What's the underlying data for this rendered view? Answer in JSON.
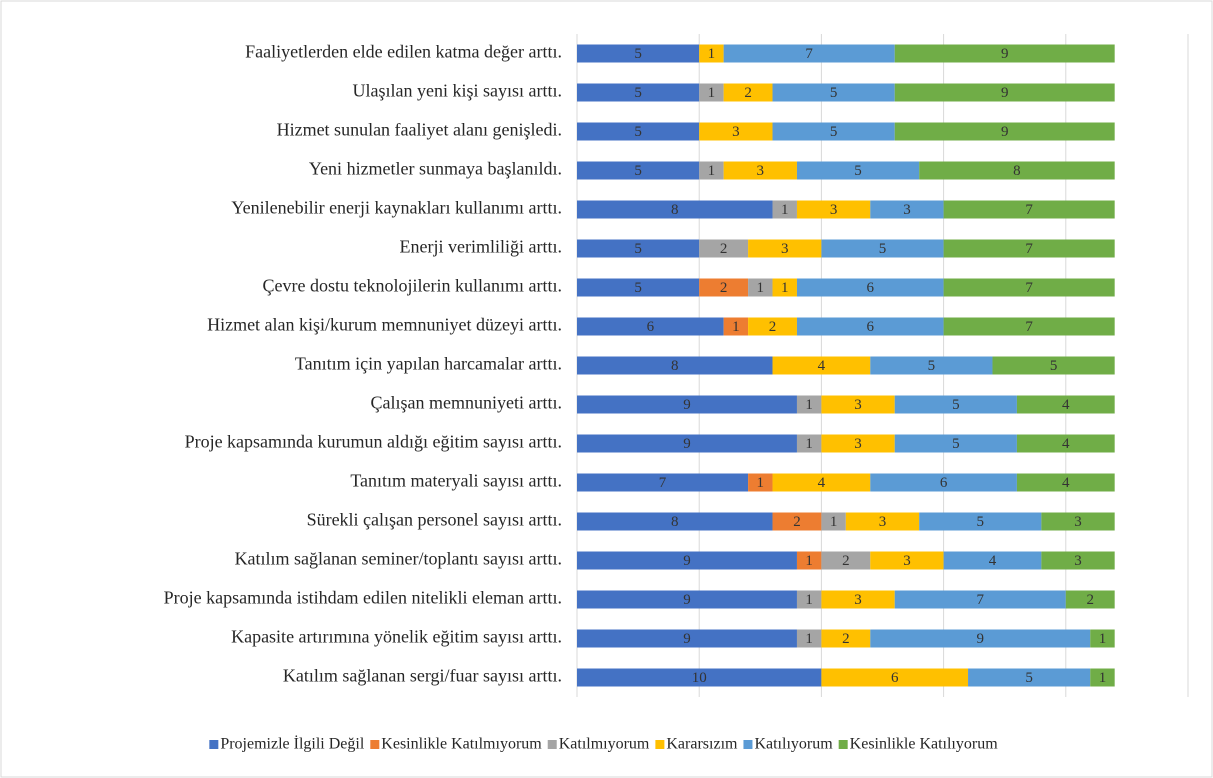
{
  "chart_data": {
    "type": "stacked-barh",
    "categories": [
      "Faaliyetlerden elde edilen katma değer arttı.",
      "Ulaşılan yeni kişi sayısı arttı.",
      "Hizmet sunulan faaliyet alanı genişledi.",
      "Yeni hizmetler sunmaya başlanıldı.",
      "Yenilenebilir enerji kaynakları kullanımı arttı.",
      "Enerji verimliliği arttı.",
      "Çevre dostu teknolojilerin kullanımı arttı.",
      "Hizmet alan kişi/kurum memnuniyet düzeyi arttı.",
      "Tanıtım için yapılan harcamalar arttı.",
      "Çalışan memnuniyeti arttı.",
      "Proje kapsamında kurumun aldığı eğitim sayısı arttı.",
      "Tanıtım materyali sayısı arttı.",
      "Sürekli çalışan personel sayısı arttı.",
      "Katılım sağlanan seminer/toplantı sayısı arttı.",
      "Proje kapsamında istihdam edilen nitelikli eleman arttı.",
      "Kapasite artırımına yönelik eğitim sayısı arttı.",
      "Katılım sağlanan sergi/fuar sayısı arttı."
    ],
    "series": [
      {
        "name": "Projemizle İlgili Değil",
        "color": "#4472c4",
        "values": [
          5,
          5,
          5,
          5,
          8,
          5,
          5,
          6,
          8,
          9,
          9,
          7,
          8,
          9,
          9,
          9,
          10
        ]
      },
      {
        "name": "Kesinlikle Katılmıyorum",
        "color": "#ed7d31",
        "values": [
          0,
          0,
          0,
          0,
          0,
          0,
          2,
          1,
          0,
          0,
          0,
          1,
          2,
          1,
          0,
          0,
          0
        ]
      },
      {
        "name": "Katılmıyorum",
        "color": "#a5a5a5",
        "values": [
          0,
          1,
          0,
          1,
          1,
          2,
          1,
          0,
          0,
          1,
          1,
          0,
          1,
          2,
          1,
          1,
          0
        ]
      },
      {
        "name": "Kararsızım",
        "color": "#ffc000",
        "values": [
          1,
          2,
          3,
          3,
          3,
          3,
          1,
          2,
          4,
          3,
          3,
          4,
          3,
          3,
          3,
          2,
          6
        ]
      },
      {
        "name": "Katılıyorum",
        "color": "#5b9bd5",
        "values": [
          7,
          5,
          5,
          5,
          3,
          5,
          6,
          6,
          5,
          5,
          5,
          6,
          5,
          4,
          7,
          9,
          5
        ]
      },
      {
        "name": "Kesinlikle Katılıyorum",
        "color": "#70ad47",
        "values": [
          9,
          9,
          9,
          8,
          7,
          7,
          7,
          7,
          5,
          4,
          4,
          4,
          3,
          3,
          2,
          1,
          1
        ]
      }
    ],
    "xlim": [
      0,
      25
    ],
    "xticks": [
      0,
      5,
      10,
      15,
      20,
      25
    ],
    "grid": true,
    "legend": "bottom"
  }
}
